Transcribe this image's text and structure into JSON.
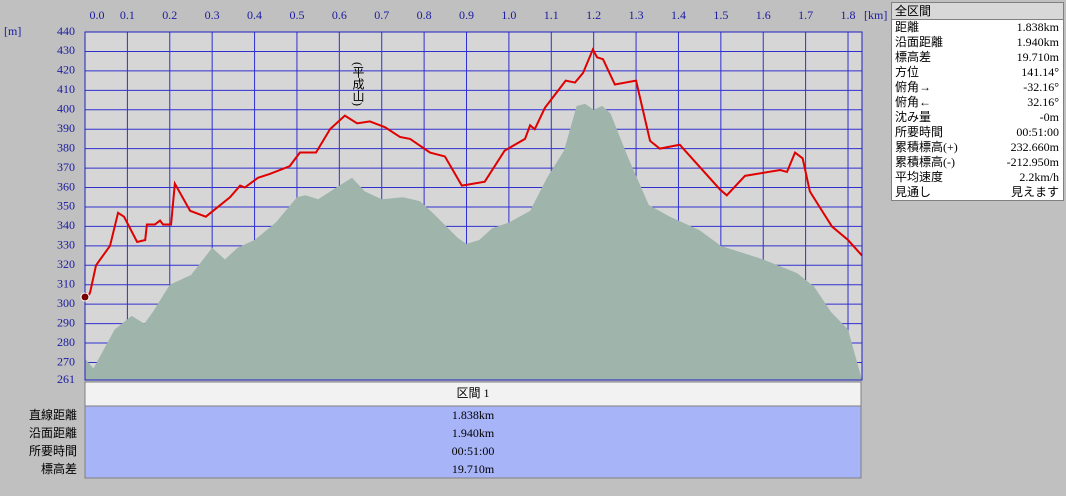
{
  "chart_data": {
    "type": "line",
    "x_unit": "[km]",
    "y_unit": "[m]",
    "annotations": [
      "(平成山)"
    ],
    "xlim": [
      0,
      1.833
    ],
    "ylim": [
      261,
      440
    ],
    "xticks": [
      {
        "value": 0,
        "label": "0.0"
      },
      0.1,
      0.2,
      0.3,
      0.4,
      0.5,
      0.6,
      0.7,
      0.8,
      0.9,
      {
        "value": 1,
        "label": "1.0"
      },
      1.1,
      1.2,
      1.3,
      1.4,
      1.5,
      1.6,
      1.7,
      1.8
    ],
    "yticks": [
      261,
      270,
      280,
      290,
      300,
      310,
      320,
      330,
      340,
      350,
      360,
      370,
      380,
      390,
      400,
      410,
      420,
      430,
      440
    ],
    "grid": true,
    "series": [
      {
        "style": "area",
        "color": "#9fb5ab",
        "x": [
          0,
          0.02,
          0.07,
          0.11,
          0.14,
          0.16,
          0.2,
          0.25,
          0.3,
          0.33,
          0.36,
          0.4,
          0.45,
          0.5,
          0.52,
          0.55,
          0.6,
          0.63,
          0.66,
          0.7,
          0.75,
          0.79,
          0.82,
          0.88,
          0.9,
          0.93,
          0.96,
          1.0,
          1.05,
          1.09,
          1.13,
          1.16,
          1.18,
          1.2,
          1.22,
          1.24,
          1.28,
          1.33,
          1.38,
          1.45,
          1.5,
          1.6,
          1.68,
          1.72,
          1.76,
          1.8,
          1.833
        ],
        "values": [
          272,
          267,
          287,
          294,
          290,
          296,
          310,
          315,
          329,
          323,
          329,
          333,
          342,
          355,
          356,
          354,
          361,
          365,
          358,
          354,
          355,
          353,
          347,
          334,
          331,
          333,
          339,
          342,
          348,
          365,
          379,
          402,
          403,
          400,
          402,
          398,
          376,
          351,
          345,
          338,
          330,
          323,
          316,
          309,
          296,
          287,
          261
        ]
      },
      {
        "style": "line",
        "color": "#e00000",
        "x": [
          0,
          0.007,
          0.012,
          0.026,
          0.059,
          0.078,
          0.092,
          0.123,
          0.142,
          0.146,
          0.165,
          0.177,
          0.184,
          0.203,
          0.212,
          0.248,
          0.285,
          0.342,
          0.366,
          0.377,
          0.408,
          0.436,
          0.483,
          0.507,
          0.545,
          0.578,
          0.613,
          0.642,
          0.672,
          0.708,
          0.743,
          0.767,
          0.814,
          0.849,
          0.889,
          0.943,
          0.99,
          1.038,
          1.05,
          1.061,
          1.085,
          1.134,
          1.156,
          1.175,
          1.198,
          1.208,
          1.222,
          1.25,
          1.3,
          1.333,
          1.356,
          1.403,
          1.498,
          1.514,
          1.557,
          1.64,
          1.656,
          1.675,
          1.693,
          1.71,
          1.733,
          1.762,
          1.8,
          1.833
        ],
        "values": [
          306,
          304,
          306,
          320,
          330,
          347,
          345,
          332,
          333,
          341,
          341,
          343,
          341,
          341,
          362,
          348,
          345,
          355,
          361,
          360,
          365,
          367,
          371,
          378,
          378,
          390,
          397,
          393,
          394,
          391,
          386,
          385,
          378,
          376,
          361,
          363,
          379,
          385,
          392,
          390,
          401,
          415,
          414,
          419,
          431,
          427,
          426,
          413,
          415,
          384,
          380,
          382,
          359,
          356,
          366,
          369,
          368,
          378,
          375,
          358,
          350,
          340,
          333,
          325
        ]
      }
    ]
  },
  "section_table": {
    "header": "区間 1",
    "rows": [
      [
        "直線距離",
        "1.838km"
      ],
      [
        "沿面距離",
        "1.940km"
      ],
      [
        "所要時間",
        "00:51:00"
      ],
      [
        "標高差",
        "19.710m"
      ]
    ]
  },
  "summary_panel": {
    "title": "全区間",
    "rows": [
      [
        "距離",
        "1.838km"
      ],
      [
        "沿面距離",
        "1.940km"
      ],
      [
        "標高差",
        "19.710m"
      ],
      [
        "方位",
        "141.14°"
      ],
      [
        "俯角→",
        "-32.16°"
      ],
      [
        "俯角←",
        "32.16°"
      ],
      [
        "沈み量",
        "-0m"
      ],
      [
        "所要時間",
        "00:51:00"
      ],
      [
        "累積標高(+)",
        "232.660m"
      ],
      [
        "累積標高(-)",
        "-212.950m"
      ],
      [
        "平均速度",
        "2.2km/h"
      ],
      [
        "見通し",
        "見えます"
      ]
    ]
  }
}
